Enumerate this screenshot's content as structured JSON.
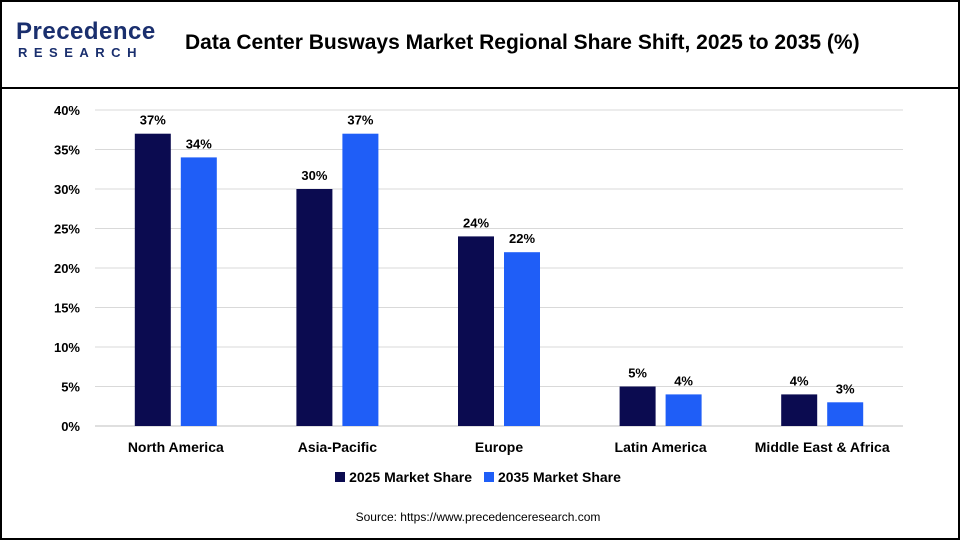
{
  "brand": {
    "name_top": "Precedence",
    "name_bottom": "RESEARCH"
  },
  "title": "Data Center Busways Market Regional Share Shift, 2025 to 2035 (%)",
  "source": "Source: https://www.precedenceresearch.com",
  "colors": {
    "series_2025": "#0b0b50",
    "series_2035": "#1f5ef7",
    "grid": "#d9d9d9",
    "brand": "#1a2f6e"
  },
  "chart_data": {
    "type": "bar",
    "categories": [
      "North America",
      "Asia-Pacific",
      "Europe",
      "Latin America",
      "Middle East & Africa"
    ],
    "series": [
      {
        "name": "2025 Market Share",
        "values": [
          37,
          30,
          24,
          5,
          4
        ]
      },
      {
        "name": "2035 Market Share",
        "values": [
          34,
          37,
          22,
          4,
          3
        ]
      }
    ],
    "data_labels": [
      [
        "37%",
        "30%",
        "24%",
        "5%",
        "4%"
      ],
      [
        "34%",
        "37%",
        "22%",
        "4%",
        "3%"
      ]
    ],
    "y_ticks": [
      "0%",
      "5%",
      "10%",
      "15%",
      "20%",
      "25%",
      "30%",
      "35%",
      "40%"
    ],
    "ylim": [
      0,
      40
    ],
    "grid": true,
    "legend_position": "bottom"
  }
}
